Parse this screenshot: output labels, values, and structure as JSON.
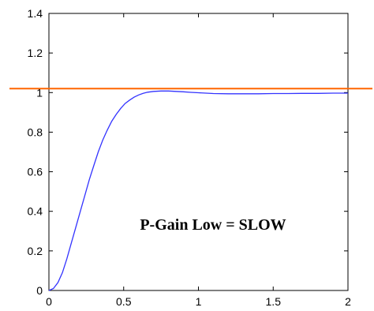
{
  "chart_data": {
    "type": "line",
    "title": "",
    "xlabel": "",
    "ylabel": "",
    "xlim": [
      0,
      2
    ],
    "ylim": [
      0,
      1.4
    ],
    "grid": false,
    "x_ticks": [
      "0",
      "0.5",
      "1",
      "1.5",
      "2"
    ],
    "y_ticks": [
      "0",
      "0.2",
      "0.4",
      "0.6",
      "0.8",
      "1",
      "1.2",
      "1.4"
    ],
    "annotation": "P-Gain Low = SLOW",
    "series": [
      {
        "name": "",
        "color": "#3333ff",
        "x": [
          0,
          0.03,
          0.06,
          0.09,
          0.12,
          0.15,
          0.18,
          0.21,
          0.24,
          0.27,
          0.3,
          0.33,
          0.36,
          0.39,
          0.42,
          0.45,
          0.48,
          0.51,
          0.54,
          0.57,
          0.6,
          0.63,
          0.66,
          0.7,
          0.75,
          0.8,
          0.85,
          0.9,
          0.95,
          1.0,
          1.05,
          1.1,
          1.2,
          1.3,
          1.4,
          1.5,
          1.6,
          1.7,
          1.8,
          1.9,
          2.0
        ],
        "values": [
          0,
          0.01,
          0.04,
          0.09,
          0.16,
          0.24,
          0.32,
          0.4,
          0.48,
          0.56,
          0.63,
          0.7,
          0.76,
          0.81,
          0.855,
          0.89,
          0.92,
          0.945,
          0.962,
          0.977,
          0.988,
          0.996,
          1.002,
          1.006,
          1.008,
          1.008,
          1.006,
          1.004,
          1.001,
          0.999,
          0.997,
          0.995,
          0.994,
          0.994,
          0.994,
          0.995,
          0.995,
          0.996,
          0.996,
          0.997,
          0.997
        ]
      }
    ],
    "reference_line": {
      "y": 1.02,
      "color": "#ff6600"
    }
  }
}
